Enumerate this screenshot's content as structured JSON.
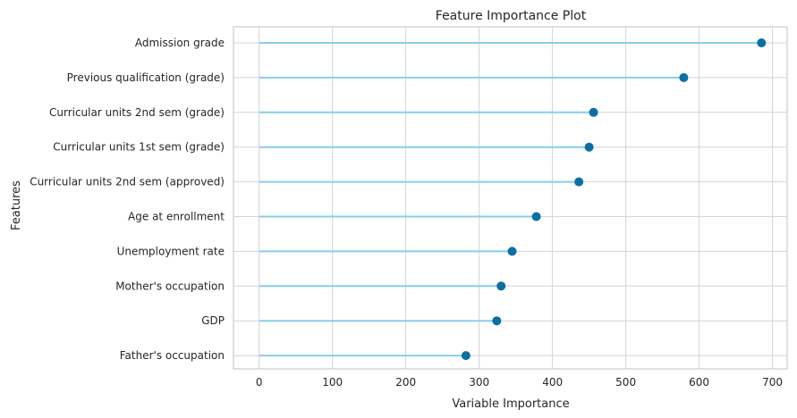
{
  "chart_data": {
    "type": "lollipop",
    "title": "Feature Importance Plot",
    "xlabel": "Variable Importance",
    "ylabel": "Features",
    "xlim": [
      -35,
      720
    ],
    "xticks": [
      0,
      100,
      200,
      300,
      400,
      500,
      600,
      700
    ],
    "grid": true,
    "categories": [
      "Admission grade",
      "Previous qualification (grade)",
      "Curricular units 2nd sem (grade)",
      "Curricular units 1st sem (grade)",
      "Curricular units 2nd sem (approved)",
      "Age at enrollment",
      "Unemployment rate",
      "Mother's occupation",
      "GDP",
      "Father's occupation"
    ],
    "values": [
      685,
      579,
      456,
      450,
      436,
      378,
      345,
      330,
      324,
      282
    ],
    "colors": {
      "stem": "#87ceeb",
      "marker": "#0b6fa4",
      "grid": "#d4d4d4",
      "axes": "#cccccc"
    }
  }
}
